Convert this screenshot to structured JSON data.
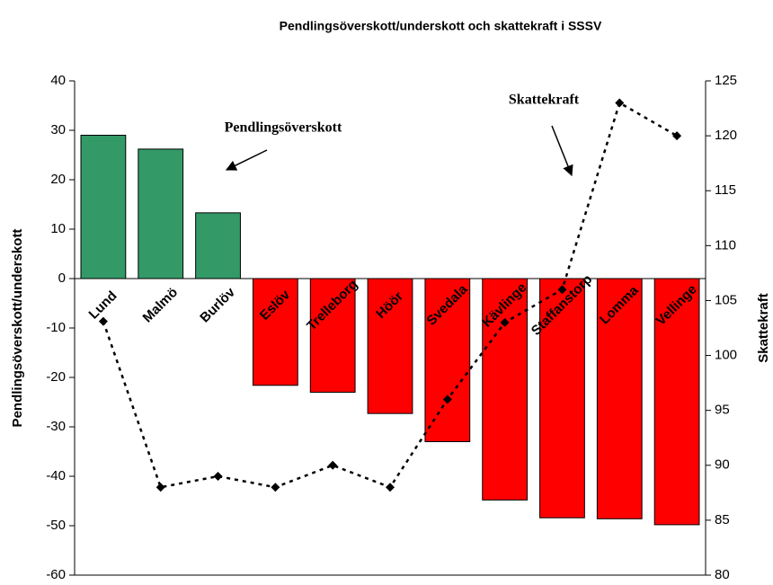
{
  "chart_data": {
    "type": "combo",
    "title": "Pendlingsöverskott/underskott och skattekraft i SSSV",
    "y_label": "Pendlingsöverskott/underskott",
    "y2_label": "Skattekraft",
    "categories": [
      "Lund",
      "Malmö",
      "Burlöv",
      "Eslöv",
      "Trelleborg",
      "Höör",
      "Svedala",
      "Kävlinge",
      "Staffanstorp",
      "Lomma",
      "Vellinge"
    ],
    "series": [
      {
        "name": "Pendlingsöverskott",
        "type": "bar",
        "color": "#339966",
        "negative_color": "#ff0000",
        "values": [
          29,
          26.2,
          13.3,
          -21.6,
          -23,
          -27.3,
          -33,
          -44.8,
          -48.4,
          -48.6,
          -49.8
        ]
      },
      {
        "name": "Skattekraft",
        "type": "line",
        "axis": "y2",
        "color": "#000000",
        "values": [
          103.1,
          88,
          89,
          88,
          90,
          88,
          96,
          103,
          106,
          123,
          120
        ]
      }
    ],
    "ylim": [
      -60,
      40
    ],
    "yticks": [
      -60,
      -50,
      -40,
      -30,
      -20,
      -10,
      0,
      10,
      20,
      30,
      40
    ],
    "y2lim": [
      80,
      125
    ],
    "y2ticks": [
      80,
      85,
      90,
      95,
      100,
      105,
      110,
      115,
      120,
      125
    ]
  }
}
